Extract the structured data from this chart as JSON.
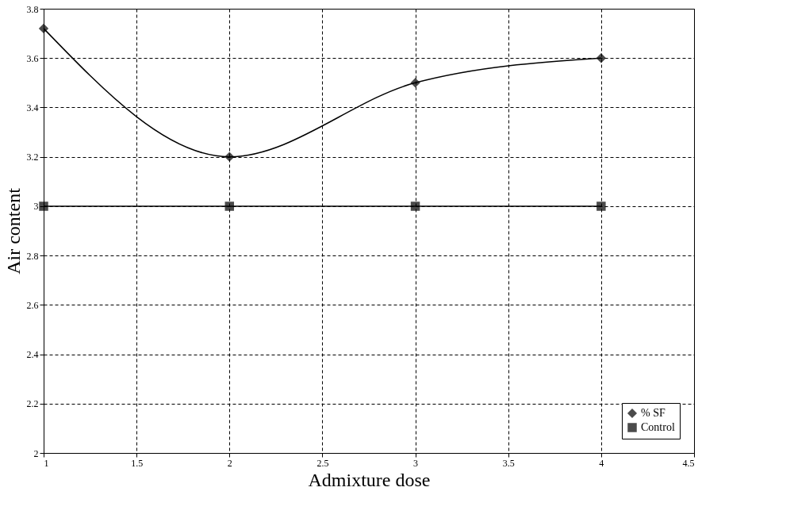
{
  "chart_data": {
    "type": "line",
    "xlabel": "Admixture dose",
    "ylabel": "Air content",
    "x": [
      1,
      2,
      3,
      4
    ],
    "series": [
      {
        "name": "% SF",
        "color": "#000000",
        "values": [
          3.72,
          3.2,
          3.5,
          3.6
        ],
        "marker": "diamond"
      },
      {
        "name": "Control",
        "color": "#000000",
        "values": [
          3,
          3,
          3,
          3
        ],
        "marker": "square"
      }
    ],
    "xlim": [
      1,
      4.5
    ],
    "xticks": [
      1,
      1.5,
      2,
      2.5,
      3,
      3.5,
      4,
      4.5
    ],
    "ylim": [
      2,
      3.8
    ],
    "yticks": [
      2,
      2.2,
      2.4,
      2.6,
      2.8,
      3,
      3.2,
      3.4,
      3.6,
      3.8
    ],
    "grid": true,
    "legend": "bottom right",
    "line_style": "solid"
  }
}
